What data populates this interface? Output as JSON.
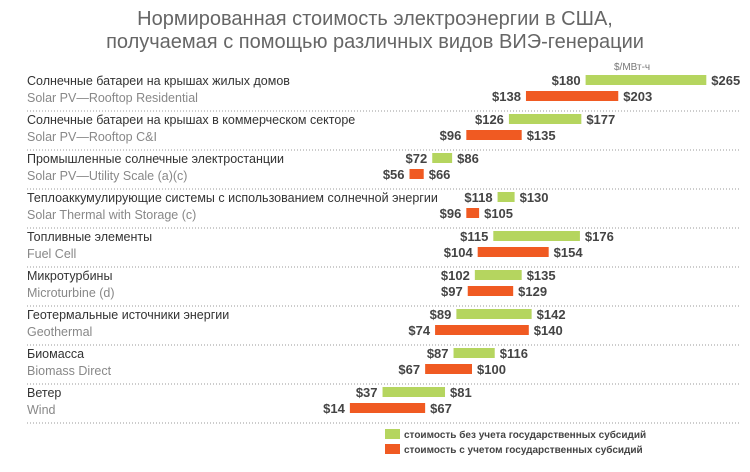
{
  "chart_data": {
    "type": "bar",
    "subtype": "range",
    "title_line1": "Нормированная стоимость электроэнергии в США,",
    "title_line2": "получаемая с помощью различных видов ВИЭ-генерации",
    "unit": "$/МВт-ч",
    "categories": [
      {
        "ru": "Солнечные батареи на крышах жилых домов",
        "en": "Solar PV—Rooftop Residential"
      },
      {
        "ru": "Солнечные батареи на крышах в коммерческом секторе",
        "en": "Solar PV—Rooftop C&I"
      },
      {
        "ru": "Промышленные солнечные электростанции",
        "en": "Solar PV—Utility Scale (a)(c)"
      },
      {
        "ru": "Теплоаккумулирующие системы с использованием солнечной энергии",
        "en": "Solar Thermal with Storage (c)"
      },
      {
        "ru": "Топливные элементы",
        "en": "Fuel Cell"
      },
      {
        "ru": "Микротурбины",
        "en": "Microturbine (d)"
      },
      {
        "ru": "Геотермальные источники энергии",
        "en": "Geothermal"
      },
      {
        "ru": "Биомасса",
        "en": "Biomass Direct"
      },
      {
        "ru": "Ветер",
        "en": "Wind"
      }
    ],
    "series": [
      {
        "name": "стоимость без учета государственных субсидий",
        "color": "#b5d55f",
        "ranges": [
          [
            180,
            265
          ],
          [
            126,
            177
          ],
          [
            72,
            86
          ],
          [
            118,
            130
          ],
          [
            115,
            176
          ],
          [
            102,
            135
          ],
          [
            89,
            142
          ],
          [
            87,
            116
          ],
          [
            37,
            81
          ]
        ]
      },
      {
        "name": "стоимость с учетом государственных субсидий",
        "color": "#f05a22",
        "ranges": [
          [
            138,
            203
          ],
          [
            96,
            135
          ],
          [
            56,
            66
          ],
          [
            96,
            105
          ],
          [
            104,
            154
          ],
          [
            97,
            129
          ],
          [
            74,
            140
          ],
          [
            67,
            100
          ],
          [
            14,
            67
          ]
        ]
      }
    ],
    "legend": "bottom",
    "grid": false
  }
}
